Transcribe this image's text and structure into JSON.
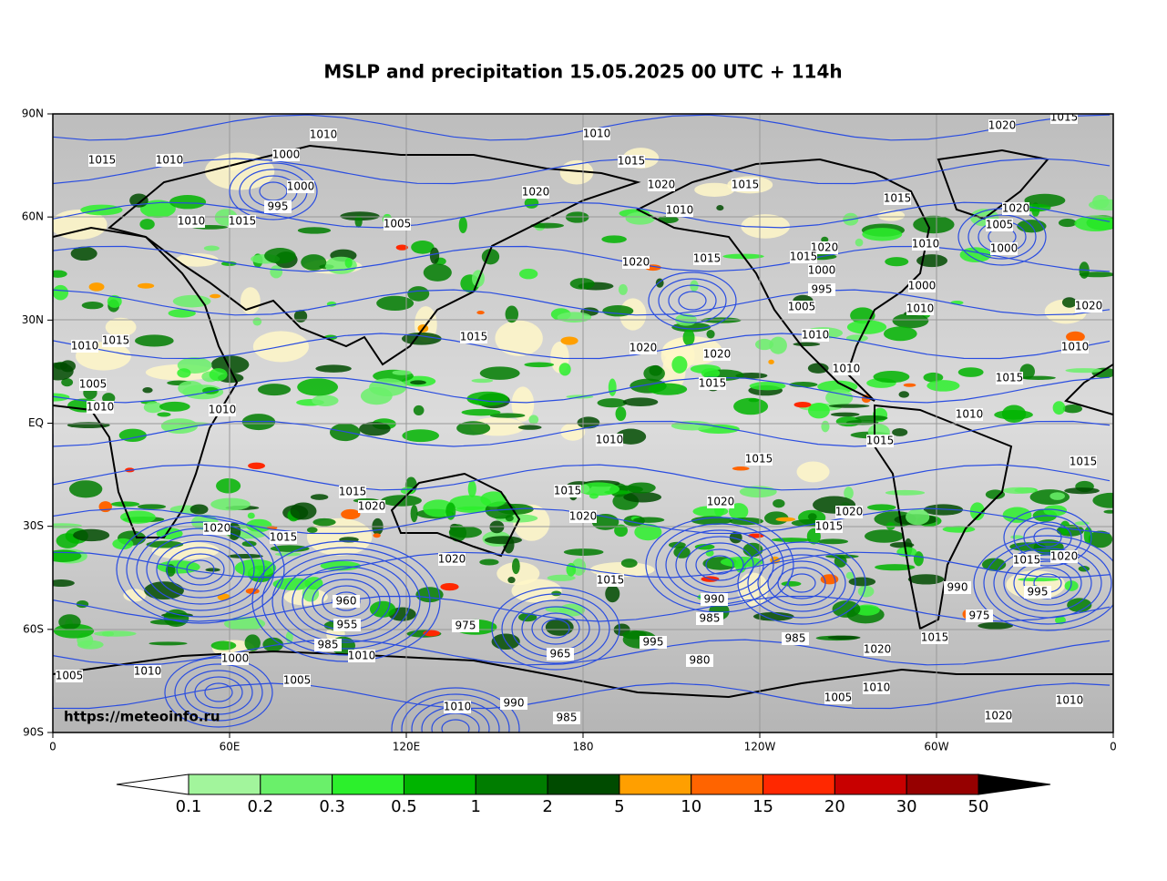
{
  "map": {
    "title": "MSLP and precipitation 15.05.2025 00 UTC + 114h",
    "lat_labels": [
      "90N",
      "60N",
      "30N",
      "EQ",
      "30S",
      "60S",
      "90S"
    ],
    "lon_labels": [
      "0",
      "60E",
      "120E",
      "180",
      "120W",
      "60W",
      "0"
    ],
    "source": "https://meteoinfo.ru",
    "colorbar": {
      "levels": [
        0.1,
        0.2,
        0.3,
        0.5,
        1,
        2,
        5,
        10,
        15,
        20,
        30,
        50
      ],
      "colors": [
        "#ffffff",
        "#a2f59c",
        "#6af06a",
        "#2cf02c",
        "#00b400",
        "#007d00",
        "#004b00",
        "#ff9f00",
        "#ff6400",
        "#ff2800",
        "#c80000",
        "#960000",
        "#000000"
      ]
    },
    "isobar_labels": [
      1010,
      1010,
      1020,
      1015,
      1015,
      1010,
      1000,
      1000,
      995,
      1020,
      1015,
      1020,
      1015,
      1015,
      1020,
      1005,
      1000,
      1010,
      1015,
      1005,
      1010,
      1020,
      1015,
      1020,
      1000,
      1010,
      1015,
      1020,
      1020,
      1015,
      1010,
      1015,
      1005,
      1010,
      1010,
      1010,
      1015,
      1015,
      1010,
      1015,
      1020,
      1015,
      1015,
      1020,
      1020,
      1020,
      1015,
      1020,
      1015,
      1020,
      1015,
      990,
      985,
      975,
      960,
      955,
      985,
      1010,
      1000,
      1005,
      1010,
      1005,
      1010,
      990,
      985,
      965,
      995,
      980,
      985,
      1020,
      1005,
      1010,
      1015,
      975,
      990,
      1015,
      1020,
      995,
      1010,
      1020,
      1010,
      1020,
      1015,
      1010,
      1000,
      1005,
      1010,
      1010,
      995,
      1015
    ]
  }
}
